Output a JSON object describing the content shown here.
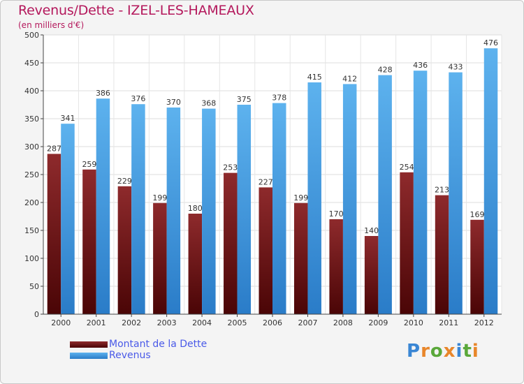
{
  "title": "Revenus/Dette - IZEL-LES-HAMEAUX",
  "subtitle": "(en milliers d'€)",
  "colors": {
    "dette": "#7a1416",
    "revenus": "#4aa3e6",
    "title": "#b4185c",
    "legend_text": "#4a5ae8"
  },
  "logo": {
    "text": "Proxiti"
  },
  "chart_data": {
    "type": "bar",
    "title": "Revenus/Dette - IZEL-LES-HAMEAUX",
    "subtitle": "(en milliers d'€)",
    "categories": [
      "2000",
      "2001",
      "2002",
      "2003",
      "2004",
      "2005",
      "2006",
      "2007",
      "2008",
      "2009",
      "2010",
      "2011",
      "2012"
    ],
    "series": [
      {
        "name": "Montant de la Dette",
        "values": [
          287,
          259,
          229,
          199,
          180,
          253,
          227,
          199,
          170,
          140,
          254,
          213,
          169
        ]
      },
      {
        "name": "Revenus",
        "values": [
          341,
          386,
          376,
          370,
          368,
          375,
          378,
          415,
          412,
          428,
          436,
          433,
          476
        ]
      }
    ],
    "ylim": [
      0,
      500
    ],
    "yticks": [
      0,
      50,
      100,
      150,
      200,
      250,
      300,
      350,
      400,
      450,
      500
    ],
    "grid": true,
    "legend": "bottom-left"
  }
}
